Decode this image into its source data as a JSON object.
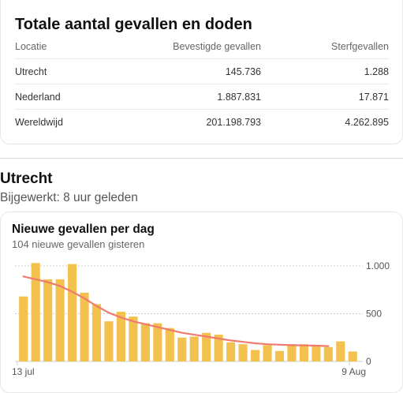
{
  "summary": {
    "title": "Totale aantal gevallen en doden",
    "columns": [
      "Locatie",
      "Bevestigde gevallen",
      "Sterfgevallen"
    ],
    "rows": [
      [
        "Utrecht",
        "145.736",
        "1.288"
      ],
      [
        "Nederland",
        "1.887.831",
        "17.871"
      ],
      [
        "Wereldwijd",
        "201.198.793",
        "4.262.895"
      ]
    ]
  },
  "location": {
    "name": "Utrecht",
    "updated": "Bijgewerkt: 8 uur geleden"
  },
  "chart_card": {
    "title": "Nieuwe gevallen per dag",
    "subtitle": "104 nieuwe gevallen gisteren"
  },
  "colors": {
    "bar": "#f2c14e",
    "trend": "#ef7a6e",
    "grid": "#cfcfcf"
  },
  "chart_data": {
    "type": "bar",
    "x_start_label": "13 jul",
    "x_end_label": "9 Aug",
    "yticks": [
      0,
      500,
      1000
    ],
    "ytick_labels": [
      "0",
      "500",
      "1.000"
    ],
    "ylim": [
      0,
      1000
    ],
    "values": [
      680,
      1030,
      860,
      860,
      1020,
      720,
      600,
      420,
      520,
      470,
      400,
      400,
      350,
      250,
      260,
      300,
      280,
      200,
      180,
      120,
      170,
      110,
      180,
      180,
      160,
      150,
      210,
      104
    ],
    "trend": [
      890,
      860,
      830,
      790,
      730,
      660,
      580,
      510,
      460,
      420,
      390,
      360,
      330,
      300,
      280,
      260,
      240,
      220,
      205,
      190,
      180,
      175,
      170,
      168,
      165,
      160
    ]
  }
}
